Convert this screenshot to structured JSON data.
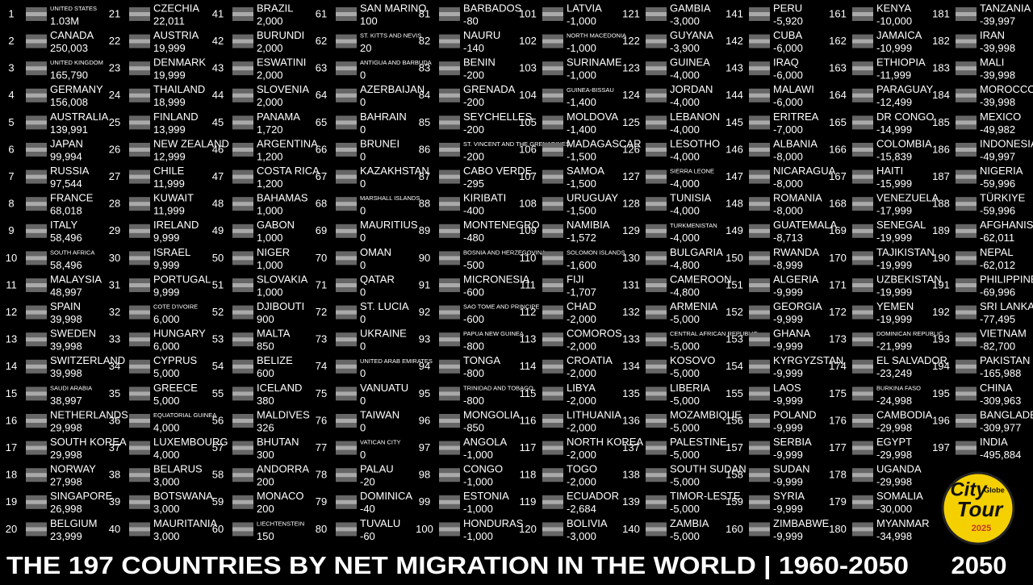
{
  "title": "THE 197 COUNTRIES BY NET MIGRATION IN THE WORLD | 1960-2050",
  "year": "2050",
  "logo": {
    "line1": "City",
    "line2": "Globe",
    "line3": "Tour",
    "line4": "2025"
  },
  "countries": [
    [
      1,
      "UNITED STATES",
      "1.03M"
    ],
    [
      2,
      "CANADA",
      "250,003"
    ],
    [
      3,
      "UNITED KINGDOM",
      "165,790"
    ],
    [
      4,
      "GERMANY",
      "156,008"
    ],
    [
      5,
      "AUSTRALIA",
      "139,991"
    ],
    [
      6,
      "JAPAN",
      "99,994"
    ],
    [
      7,
      "RUSSIA",
      "97,544"
    ],
    [
      8,
      "FRANCE",
      "68,018"
    ],
    [
      9,
      "ITALY",
      "58,496"
    ],
    [
      10,
      "SOUTH AFRICA",
      "58,496"
    ],
    [
      11,
      "MALAYSIA",
      "48,997"
    ],
    [
      12,
      "SPAIN",
      "39,998"
    ],
    [
      13,
      "SWEDEN",
      "39,998"
    ],
    [
      14,
      "SWITZERLAND",
      "39,998"
    ],
    [
      15,
      "SAUDI ARABIA",
      "38,997"
    ],
    [
      16,
      "NETHERLANDS",
      "29,998"
    ],
    [
      17,
      "SOUTH KOREA",
      "29,998"
    ],
    [
      18,
      "NORWAY",
      "27,998"
    ],
    [
      19,
      "SINGAPORE",
      "26,998"
    ],
    [
      20,
      "BELGIUM",
      "23,999"
    ],
    [
      21,
      "CZECHIA",
      "22,011"
    ],
    [
      22,
      "AUSTRIA",
      "19,999"
    ],
    [
      23,
      "DENMARK",
      "19,999"
    ],
    [
      24,
      "THAILAND",
      "18,999"
    ],
    [
      25,
      "FINLAND",
      "13,999"
    ],
    [
      26,
      "NEW ZEALAND",
      "12,999"
    ],
    [
      27,
      "CHILE",
      "11,999"
    ],
    [
      28,
      "KUWAIT",
      "11,999"
    ],
    [
      29,
      "IRELAND",
      "9,999"
    ],
    [
      30,
      "ISRAEL",
      "9,999"
    ],
    [
      31,
      "PORTUGAL",
      "9,999"
    ],
    [
      32,
      "COTE D'IVOIRE",
      "6,000"
    ],
    [
      33,
      "HUNGARY",
      "6,000"
    ],
    [
      34,
      "CYPRUS",
      "5,000"
    ],
    [
      35,
      "GREECE",
      "5,000"
    ],
    [
      36,
      "EQUATORIAL GUINEA",
      "4,000"
    ],
    [
      37,
      "LUXEMBOURG",
      "4,000"
    ],
    [
      38,
      "BELARUS",
      "3,000"
    ],
    [
      39,
      "BOTSWANA",
      "3,000"
    ],
    [
      40,
      "MAURITANIA",
      "3,000"
    ],
    [
      41,
      "BRAZIL",
      "2,000"
    ],
    [
      42,
      "BURUNDI",
      "2,000"
    ],
    [
      43,
      "ESWATINI",
      "2,000"
    ],
    [
      44,
      "SLOVENIA",
      "2,000"
    ],
    [
      45,
      "PANAMA",
      "1,720"
    ],
    [
      46,
      "ARGENTINA",
      "1,200"
    ],
    [
      47,
      "COSTA RICA",
      "1,200"
    ],
    [
      48,
      "BAHAMAS",
      "1,000"
    ],
    [
      49,
      "GABON",
      "1,000"
    ],
    [
      50,
      "NIGER",
      "1,000"
    ],
    [
      51,
      "SLOVAKIA",
      "1,000"
    ],
    [
      52,
      "DJIBOUTI",
      "900"
    ],
    [
      53,
      "MALTA",
      "850"
    ],
    [
      54,
      "BELIZE",
      "600"
    ],
    [
      55,
      "ICELAND",
      "380"
    ],
    [
      56,
      "MALDIVES",
      "326"
    ],
    [
      57,
      "BHUTAN",
      "300"
    ],
    [
      58,
      "ANDORRA",
      "200"
    ],
    [
      59,
      "MONACO",
      "200"
    ],
    [
      60,
      "LIECHTENSTEIN",
      "150"
    ],
    [
      61,
      "SAN MARINO",
      "100"
    ],
    [
      62,
      "ST. KITTS AND NEVIS",
      "20"
    ],
    [
      63,
      "ANTIGUA AND BARBUDA",
      "0"
    ],
    [
      64,
      "AZERBAIJAN",
      "0"
    ],
    [
      65,
      "BAHRAIN",
      "0"
    ],
    [
      66,
      "BRUNEI",
      "0"
    ],
    [
      67,
      "KAZAKHSTAN",
      "0"
    ],
    [
      68,
      "MARSHALL ISLANDS",
      "0"
    ],
    [
      69,
      "MAURITIUS",
      "0"
    ],
    [
      70,
      "OMAN",
      "0"
    ],
    [
      71,
      "QATAR",
      "0"
    ],
    [
      72,
      "ST. LUCIA",
      "0"
    ],
    [
      73,
      "UKRAINE",
      "0"
    ],
    [
      74,
      "UNITED ARAB EMIRATES",
      "0"
    ],
    [
      75,
      "VANUATU",
      "0"
    ],
    [
      76,
      "TAIWAN",
      "0"
    ],
    [
      77,
      "VATICAN CITY",
      "0"
    ],
    [
      78,
      "PALAU",
      "-20"
    ],
    [
      79,
      "DOMINICA",
      "-40"
    ],
    [
      80,
      "TUVALU",
      "-60"
    ],
    [
      81,
      "BARBADOS",
      "-80"
    ],
    [
      82,
      "NAURU",
      "-140"
    ],
    [
      83,
      "BENIN",
      "-200"
    ],
    [
      84,
      "GRENADA",
      "-200"
    ],
    [
      85,
      "SEYCHELLES",
      "-200"
    ],
    [
      86,
      "ST. VINCENT AND THE GRENADINES",
      "-200"
    ],
    [
      87,
      "CABO VERDE",
      "-295"
    ],
    [
      88,
      "KIRIBATI",
      "-400"
    ],
    [
      89,
      "MONTENEGRO",
      "-480"
    ],
    [
      90,
      "BOSNIA AND HERZEGOVINA",
      "-500"
    ],
    [
      91,
      "MICRONESIA",
      "-600"
    ],
    [
      92,
      "SAO TOME AND PRINCIPE",
      "-600"
    ],
    [
      93,
      "PAPUA NEW GUINEA",
      "-800"
    ],
    [
      94,
      "TONGA",
      "-800"
    ],
    [
      95,
      "TRINIDAD AND TOBAGO",
      "-800"
    ],
    [
      96,
      "MONGOLIA",
      "-850"
    ],
    [
      97,
      "ANGOLA",
      "-1,000"
    ],
    [
      98,
      "CONGO",
      "-1,000"
    ],
    [
      99,
      "ESTONIA",
      "-1,000"
    ],
    [
      100,
      "HONDURAS",
      "-1,000"
    ],
    [
      101,
      "LATVIA",
      "-1,000"
    ],
    [
      102,
      "NORTH MACEDONIA",
      "-1,000"
    ],
    [
      103,
      "SURINAME",
      "-1,000"
    ],
    [
      104,
      "GUINEA-BISSAU",
      "-1,400"
    ],
    [
      105,
      "MOLDOVA",
      "-1,400"
    ],
    [
      106,
      "MADAGASCAR",
      "-1,500"
    ],
    [
      107,
      "SAMOA",
      "-1,500"
    ],
    [
      108,
      "URUGUAY",
      "-1,500"
    ],
    [
      109,
      "NAMIBIA",
      "-1,572"
    ],
    [
      110,
      "SOLOMON ISLANDS",
      "-1,600"
    ],
    [
      111,
      "FIJI",
      "-1,707"
    ],
    [
      112,
      "CHAD",
      "-2,000"
    ],
    [
      113,
      "COMOROS",
      "-2,000"
    ],
    [
      114,
      "CROATIA",
      "-2,000"
    ],
    [
      115,
      "LIBYA",
      "-2,000"
    ],
    [
      116,
      "LITHUANIA",
      "-2,000"
    ],
    [
      117,
      "NORTH KOREA",
      "-2,000"
    ],
    [
      118,
      "TOGO",
      "-2,000"
    ],
    [
      119,
      "ECUADOR",
      "-2,684"
    ],
    [
      120,
      "BOLIVIA",
      "-3,000"
    ],
    [
      121,
      "GAMBIA",
      "-3,000"
    ],
    [
      122,
      "GUYANA",
      "-3,900"
    ],
    [
      123,
      "GUINEA",
      "-4,000"
    ],
    [
      124,
      "JORDAN",
      "-4,000"
    ],
    [
      125,
      "LEBANON",
      "-4,000"
    ],
    [
      126,
      "LESOTHO",
      "-4,000"
    ],
    [
      127,
      "SIERRA LEONE",
      "-4,000"
    ],
    [
      128,
      "TUNISIA",
      "-4,000"
    ],
    [
      129,
      "TURKMENISTAN",
      "-4,000"
    ],
    [
      130,
      "BULGARIA",
      "-4,800"
    ],
    [
      131,
      "CAMEROON",
      "-4,800"
    ],
    [
      132,
      "ARMENIA",
      "-5,000"
    ],
    [
      133,
      "CENTRAL AFRICAN REPUBLIC",
      "-5,000"
    ],
    [
      134,
      "KOSOVO",
      "-5,000"
    ],
    [
      135,
      "LIBERIA",
      "-5,000"
    ],
    [
      136,
      "MOZAMBIQUE",
      "-5,000"
    ],
    [
      137,
      "PALESTINE",
      "-5,000"
    ],
    [
      138,
      "SOUTH SUDAN",
      "-5,000"
    ],
    [
      139,
      "TIMOR-LESTE",
      "-5,000"
    ],
    [
      140,
      "ZAMBIA",
      "-5,000"
    ],
    [
      141,
      "PERU",
      "-5,920"
    ],
    [
      142,
      "CUBA",
      "-6,000"
    ],
    [
      143,
      "IRAQ",
      "-6,000"
    ],
    [
      144,
      "MALAWI",
      "-6,000"
    ],
    [
      145,
      "ERITREA",
      "-7,000"
    ],
    [
      146,
      "ALBANIA",
      "-8,000"
    ],
    [
      147,
      "NICARAGUA",
      "-8,000"
    ],
    [
      148,
      "ROMANIA",
      "-8,000"
    ],
    [
      149,
      "GUATEMALA",
      "-8,713"
    ],
    [
      150,
      "RWANDA",
      "-8,999"
    ],
    [
      151,
      "ALGERIA",
      "-9,999"
    ],
    [
      152,
      "GEORGIA",
      "-9,999"
    ],
    [
      153,
      "GHANA",
      "-9,999"
    ],
    [
      154,
      "KYRGYZSTAN",
      "-9,999"
    ],
    [
      155,
      "LAOS",
      "-9,999"
    ],
    [
      156,
      "POLAND",
      "-9,999"
    ],
    [
      157,
      "SERBIA",
      "-9,999"
    ],
    [
      158,
      "SUDAN",
      "-9,999"
    ],
    [
      159,
      "SYRIA",
      "-9,999"
    ],
    [
      160,
      "ZIMBABWE",
      "-9,999"
    ],
    [
      161,
      "KENYA",
      "-10,000"
    ],
    [
      162,
      "JAMAICA",
      "-10,999"
    ],
    [
      163,
      "ETHIOPIA",
      "-11,999"
    ],
    [
      164,
      "PARAGUAY",
      "-12,499"
    ],
    [
      165,
      "DR CONGO",
      "-14,999"
    ],
    [
      166,
      "COLOMBIA",
      "-15,839"
    ],
    [
      167,
      "HAITI",
      "-15,999"
    ],
    [
      168,
      "VENEZUELA",
      "-17,999"
    ],
    [
      169,
      "SENEGAL",
      "-19,999"
    ],
    [
      170,
      "TAJIKISTAN",
      "-19,999"
    ],
    [
      171,
      "UZBEKISTAN",
      "-19,999"
    ],
    [
      172,
      "YEMEN",
      "-19,999"
    ],
    [
      173,
      "DOMINICAN REPUBLIC",
      "-21,999"
    ],
    [
      174,
      "EL SALVADOR",
      "-23,249"
    ],
    [
      175,
      "BURKINA FASO",
      "-24,998"
    ],
    [
      176,
      "CAMBODIA",
      "-29,998"
    ],
    [
      177,
      "EGYPT",
      "-29,998"
    ],
    [
      178,
      "UGANDA",
      "-29,998"
    ],
    [
      179,
      "SOMALIA",
      "-30,000"
    ],
    [
      180,
      "MYANMAR",
      "-34,998"
    ],
    [
      181,
      "TANZANIA",
      "-39,997"
    ],
    [
      182,
      "IRAN",
      "-39,998"
    ],
    [
      183,
      "MALI",
      "-39,998"
    ],
    [
      184,
      "MOROCCO",
      "-39,998"
    ],
    [
      185,
      "MEXICO",
      "-49,982"
    ],
    [
      186,
      "INDONESIA",
      "-49,997"
    ],
    [
      187,
      "NIGERIA",
      "-59,996"
    ],
    [
      188,
      "TÜRKIYE",
      "-59,996"
    ],
    [
      189,
      "AFGHANISTAN",
      "-62,011"
    ],
    [
      190,
      "NEPAL",
      "-62,012"
    ],
    [
      191,
      "PHILIPPINES",
      "-69,996"
    ],
    [
      192,
      "SRI LANKA",
      "-77,495"
    ],
    [
      193,
      "VIETNAM",
      "-82,700"
    ],
    [
      194,
      "PAKISTAN",
      "-165,988"
    ],
    [
      195,
      "CHINA",
      "-309,963"
    ],
    [
      196,
      "BANGLADESH",
      "-309,977"
    ],
    [
      197,
      "INDIA",
      "-495,884"
    ]
  ]
}
